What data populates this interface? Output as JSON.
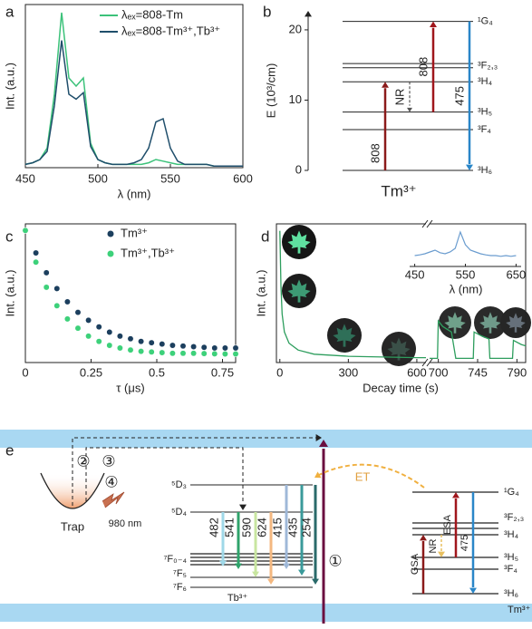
{
  "chart_data": [
    {
      "type": "line",
      "label": "a",
      "xlabel": "λ (nm)",
      "ylabel": "Int. (a.u.)",
      "x": [
        450,
        455,
        460,
        465,
        470,
        475,
        480,
        485,
        490,
        495,
        500,
        505,
        510,
        515,
        520,
        525,
        530,
        535,
        540,
        545,
        550,
        555,
        560,
        565,
        570,
        575,
        580,
        585,
        590,
        595,
        600
      ],
      "xlim": [
        450,
        600
      ],
      "xticks": [
        450,
        500,
        550,
        600
      ],
      "ylim": [
        0,
        1
      ],
      "series": [
        {
          "name": "λₑₓ=808-Tm",
          "color": "#3cc27a",
          "values": [
            0.02,
            0.03,
            0.05,
            0.12,
            0.45,
            0.95,
            0.55,
            0.5,
            0.55,
            0.15,
            0.05,
            0.03,
            0.02,
            0.02,
            0.02,
            0.02,
            0.02,
            0.03,
            0.05,
            0.04,
            0.03,
            0.02,
            0.02,
            0.02,
            0.02,
            0.02,
            0.01,
            0.01,
            0.01,
            0.01,
            0.01
          ]
        },
        {
          "name": "λₑₓ=808-Tm³⁺,Tb³⁺",
          "color": "#1f4e6b",
          "values": [
            0.02,
            0.03,
            0.05,
            0.1,
            0.38,
            0.78,
            0.45,
            0.42,
            0.46,
            0.13,
            0.05,
            0.03,
            0.02,
            0.02,
            0.02,
            0.03,
            0.05,
            0.12,
            0.28,
            0.3,
            0.12,
            0.04,
            0.02,
            0.02,
            0.02,
            0.02,
            0.01,
            0.01,
            0.01,
            0.01,
            0.01
          ]
        }
      ]
    },
    {
      "type": "levels",
      "label": "b",
      "ylabel": "E (10³/cm)",
      "xlabel": "Tm³⁺",
      "ylim": [
        0,
        22.7
      ],
      "yticks": [
        0,
        10,
        20
      ],
      "levels": [
        {
          "label": "³H₆",
          "values": [
            0
          ]
        },
        {
          "label": "³F₄",
          "values": [
            5.8
          ]
        },
        {
          "label": "³H₅",
          "values": [
            8.3
          ]
        },
        {
          "label": "³H₄",
          "values": [
            12.6
          ]
        },
        {
          "label": "³F₂,₃",
          "values": [
            14.6,
            15.2
          ]
        },
        {
          "label": "¹G₄",
          "values": [
            21.2
          ]
        }
      ],
      "transitions": [
        {
          "label": "808",
          "from": 0,
          "to": 12.6,
          "color": "#8b1a1a"
        },
        {
          "label": "NR",
          "from": 12.6,
          "to": 8.3,
          "color": "#555555",
          "dashed": true
        },
        {
          "label": "808",
          "from": 8.3,
          "to": 21.2,
          "color": "#a0161c"
        },
        {
          "label": "475",
          "from": 21.2,
          "to": 0,
          "color": "#2a86c8"
        }
      ]
    },
    {
      "type": "scatter",
      "label": "c",
      "xlabel": "τ (μs)",
      "ylabel": "Int. (a.u.)",
      "x": [
        0,
        0.04,
        0.08,
        0.12,
        0.16,
        0.2,
        0.24,
        0.28,
        0.32,
        0.36,
        0.4,
        0.44,
        0.48,
        0.52,
        0.56,
        0.6,
        0.64,
        0.68,
        0.72,
        0.76,
        0.8
      ],
      "xlim": [
        0,
        0.8
      ],
      "xticks": [
        0,
        0.25,
        0.5,
        0.75
      ],
      "ylim": [
        0,
        1.05
      ],
      "series": [
        {
          "name": "Tm³⁺",
          "color": "#1c3f5e",
          "values": [
            1.0,
            0.83,
            0.68,
            0.56,
            0.46,
            0.38,
            0.32,
            0.27,
            0.23,
            0.2,
            0.18,
            0.16,
            0.15,
            0.14,
            0.13,
            0.125,
            0.12,
            0.115,
            0.11,
            0.11,
            0.11
          ]
        },
        {
          "name": "Tm³⁺,Tb³⁺",
          "color": "#3dd17a",
          "values": [
            1.0,
            0.76,
            0.57,
            0.43,
            0.33,
            0.26,
            0.2,
            0.16,
            0.13,
            0.11,
            0.095,
            0.085,
            0.08,
            0.075,
            0.07,
            0.07,
            0.07,
            0.068,
            0.066,
            0.065,
            0.065
          ]
        }
      ]
    },
    {
      "type": "broken-line",
      "label": "d",
      "xlabel": "Decay time (s)",
      "ylabel": "Int. (a.u.)",
      "color": "#2e9e5e",
      "ylim": [
        0,
        1
      ],
      "segments": [
        {
          "xlim": [
            -15,
            640
          ],
          "xticks": [
            0,
            300,
            600
          ],
          "x": [
            0,
            5,
            10,
            20,
            40,
            80,
            150,
            300,
            450,
            600,
            640
          ],
          "values": [
            0.95,
            0.55,
            0.35,
            0.22,
            0.14,
            0.09,
            0.06,
            0.045,
            0.04,
            0.035,
            0.035
          ]
        },
        {
          "xlim": [
            690,
            800
          ],
          "xticks": [
            700,
            745,
            790
          ],
          "x": [
            690,
            699,
            700,
            705,
            715,
            720,
            740,
            741,
            750,
            758,
            759,
            785,
            786,
            795,
            800
          ],
          "values": [
            0.03,
            0.03,
            0.3,
            0.26,
            0.22,
            0.03,
            0.03,
            0.22,
            0.19,
            0.17,
            0.03,
            0.03,
            0.16,
            0.13,
            0.12
          ]
        }
      ],
      "inset": {
        "xlabel": "λ (nm)",
        "color": "#6a9ccf",
        "xlim": [
          440,
          660
        ],
        "xticks": [
          450,
          550,
          650
        ],
        "ylim": [
          0,
          1
        ],
        "x": [
          450,
          460,
          470,
          480,
          490,
          500,
          510,
          520,
          530,
          540,
          550,
          560,
          570,
          580,
          590,
          600,
          610,
          620,
          630,
          640,
          650
        ],
        "values": [
          0.3,
          0.32,
          0.35,
          0.4,
          0.45,
          0.38,
          0.35,
          0.4,
          0.5,
          0.95,
          0.6,
          0.45,
          0.4,
          0.35,
          0.32,
          0.3,
          0.3,
          0.28,
          0.3,
          0.28,
          0.3
        ]
      }
    }
  ],
  "diagram": {
    "label": "e",
    "trap": "Trap",
    "excitation": "980 nm",
    "et": "ET",
    "steps": [
      "②",
      "③",
      "④",
      "①"
    ],
    "tb": {
      "name": "Tb³⁺",
      "levels": [
        "⁵D₃",
        "⁵D₄",
        "⁷F₀₋₄",
        "⁷F₅",
        "⁷F₆"
      ],
      "emissions": [
        "482",
        "541",
        "590",
        "624",
        "415",
        "435",
        "254"
      ]
    },
    "tm": {
      "name": "Tm³⁺",
      "levels": [
        "¹G₄",
        "³F₂,₃",
        "³H₄",
        "³H₅",
        "³F₄",
        "³H₆"
      ],
      "transitions": [
        "GSA",
        "NR",
        "ESA",
        "475"
      ]
    }
  }
}
